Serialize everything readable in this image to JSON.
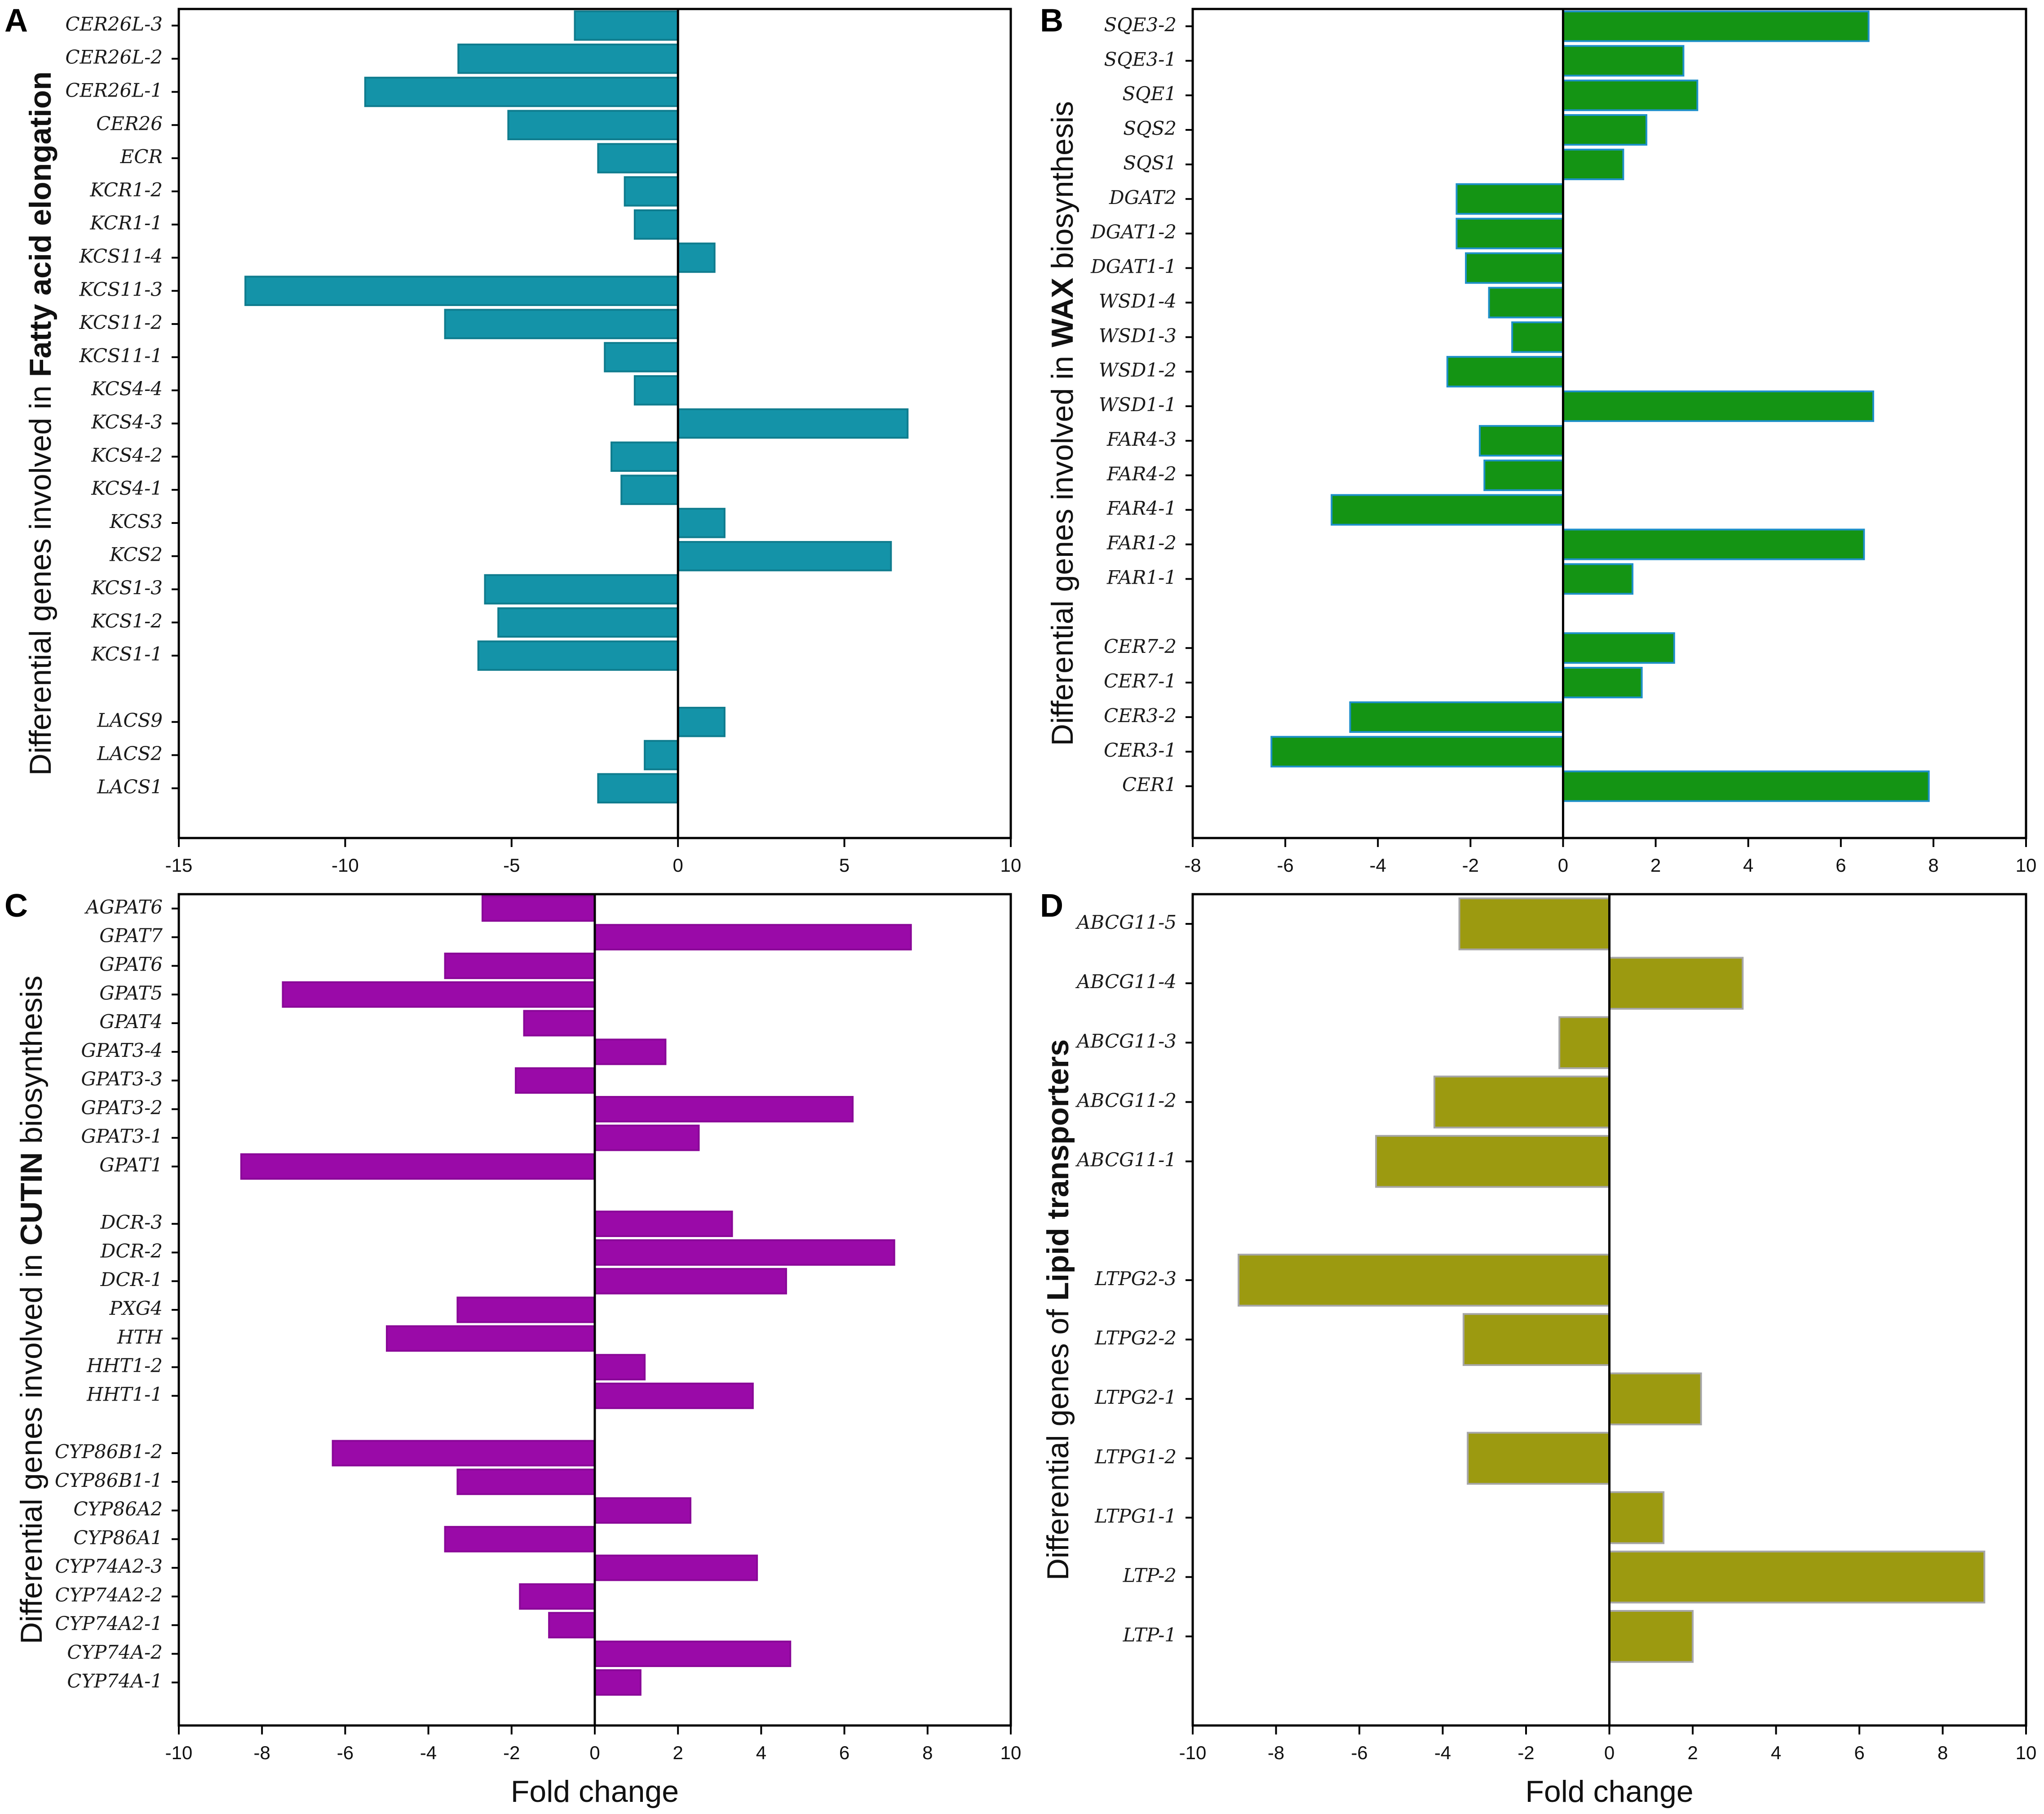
{
  "chart_data": [
    {
      "type": "bar",
      "orientation": "horizontal",
      "panel_label": "A",
      "ylabel_parts": [
        {
          "text": "Differential genes involved in ",
          "bold": false
        },
        {
          "text": "Fatty acid elongation",
          "bold": true
        }
      ],
      "xlabel": "",
      "xlim": [
        -15,
        10
      ],
      "xticks": [
        -15,
        -10,
        -5,
        0,
        5,
        10
      ],
      "color": "#1493a8",
      "edge_color": "#0f7c8e",
      "slots": 25,
      "genes": [
        {
          "name": "CER26L-3",
          "value": -3.1,
          "slot": 0
        },
        {
          "name": "CER26L-2",
          "value": -6.6,
          "slot": 1
        },
        {
          "name": "CER26L-1",
          "value": -9.4,
          "slot": 2
        },
        {
          "name": "CER26",
          "value": -5.1,
          "slot": 3
        },
        {
          "name": "ECR",
          "value": -2.4,
          "slot": 4
        },
        {
          "name": "KCR1-2",
          "value": -1.6,
          "slot": 5
        },
        {
          "name": "KCR1-1",
          "value": -1.3,
          "slot": 6
        },
        {
          "name": "KCS11-4",
          "value": 1.1,
          "slot": 7
        },
        {
          "name": "KCS11-3",
          "value": -13.0,
          "slot": 8
        },
        {
          "name": "KCS11-2",
          "value": -7.0,
          "slot": 9
        },
        {
          "name": "KCS11-1",
          "value": -2.2,
          "slot": 10
        },
        {
          "name": "KCS4-4",
          "value": -1.3,
          "slot": 11
        },
        {
          "name": "KCS4-3",
          "value": 6.9,
          "slot": 12
        },
        {
          "name": "KCS4-2",
          "value": -2.0,
          "slot": 13
        },
        {
          "name": "KCS4-1",
          "value": -1.7,
          "slot": 14
        },
        {
          "name": "KCS3",
          "value": 1.4,
          "slot": 15
        },
        {
          "name": "KCS2",
          "value": 6.4,
          "slot": 16
        },
        {
          "name": "KCS1-3",
          "value": -5.8,
          "slot": 17
        },
        {
          "name": "KCS1-2",
          "value": -5.4,
          "slot": 18
        },
        {
          "name": "KCS1-1",
          "value": -6.0,
          "slot": 19
        },
        {
          "name": "LACS9",
          "value": 1.4,
          "slot": 21
        },
        {
          "name": "LACS2",
          "value": -1.0,
          "slot": 22
        },
        {
          "name": "LACS1",
          "value": -2.4,
          "slot": 23
        }
      ]
    },
    {
      "type": "bar",
      "orientation": "horizontal",
      "panel_label": "B",
      "ylabel_parts": [
        {
          "text": "Differential genes involved in ",
          "bold": false
        },
        {
          "text": "WAX",
          "bold": true
        },
        {
          "text": " biosynthesis",
          "bold": false
        }
      ],
      "xlabel": "",
      "xlim": [
        -8,
        10
      ],
      "xticks": [
        -8,
        -6,
        -4,
        -2,
        0,
        2,
        4,
        6,
        8,
        10
      ],
      "color": "#149414",
      "edge_color": "#1e90c8",
      "slots": 24,
      "genes": [
        {
          "name": "SQE3-2",
          "value": 6.6,
          "slot": 0
        },
        {
          "name": "SQE3-1",
          "value": 2.6,
          "slot": 1
        },
        {
          "name": "SQE1",
          "value": 2.9,
          "slot": 2
        },
        {
          "name": "SQS2",
          "value": 1.8,
          "slot": 3
        },
        {
          "name": "SQS1",
          "value": 1.3,
          "slot": 4
        },
        {
          "name": "DGAT2",
          "value": -2.3,
          "slot": 5
        },
        {
          "name": "DGAT1-2",
          "value": -2.3,
          "slot": 6
        },
        {
          "name": "DGAT1-1",
          "value": -2.1,
          "slot": 7
        },
        {
          "name": "WSD1-4",
          "value": -1.6,
          "slot": 8
        },
        {
          "name": "WSD1-3",
          "value": -1.1,
          "slot": 9
        },
        {
          "name": "WSD1-2",
          "value": -2.5,
          "slot": 10
        },
        {
          "name": "WSD1-1",
          "value": 6.7,
          "slot": 11
        },
        {
          "name": "FAR4-3",
          "value": -1.8,
          "slot": 12
        },
        {
          "name": "FAR4-2",
          "value": -1.7,
          "slot": 13
        },
        {
          "name": "FAR4-1",
          "value": -5.0,
          "slot": 14
        },
        {
          "name": "FAR1-2",
          "value": 6.5,
          "slot": 15
        },
        {
          "name": "FAR1-1",
          "value": 1.5,
          "slot": 16
        },
        {
          "name": "CER7-2",
          "value": 2.4,
          "slot": 18
        },
        {
          "name": "CER7-1",
          "value": 1.7,
          "slot": 19
        },
        {
          "name": "CER3-2",
          "value": -4.6,
          "slot": 20
        },
        {
          "name": "CER3-1",
          "value": -6.3,
          "slot": 21
        },
        {
          "name": "CER1",
          "value": 7.9,
          "slot": 22
        }
      ]
    },
    {
      "type": "bar",
      "orientation": "horizontal",
      "panel_label": "C",
      "ylabel_parts": [
        {
          "text": "Differential genes involved in ",
          "bold": false
        },
        {
          "text": "CUTIN",
          "bold": true
        },
        {
          "text": " biosynthesis",
          "bold": false
        }
      ],
      "xlabel": "Fold change",
      "xlim": [
        -10,
        10
      ],
      "xticks": [
        -10,
        -8,
        -6,
        -4,
        -2,
        0,
        2,
        4,
        6,
        8,
        10
      ],
      "color": "#9a0aa8",
      "edge_color": "#8a0898",
      "slots": 29,
      "genes": [
        {
          "name": "AGPAT6",
          "value": -2.7,
          "slot": 0
        },
        {
          "name": "GPAT7",
          "value": 7.6,
          "slot": 1
        },
        {
          "name": "GPAT6",
          "value": -3.6,
          "slot": 2
        },
        {
          "name": "GPAT5",
          "value": -7.5,
          "slot": 3
        },
        {
          "name": "GPAT4",
          "value": -1.7,
          "slot": 4
        },
        {
          "name": "GPAT3-4",
          "value": 1.7,
          "slot": 5
        },
        {
          "name": "GPAT3-3",
          "value": -1.9,
          "slot": 6
        },
        {
          "name": "GPAT3-2",
          "value": 6.2,
          "slot": 7
        },
        {
          "name": "GPAT3-1",
          "value": 2.5,
          "slot": 8
        },
        {
          "name": "GPAT1",
          "value": -8.5,
          "slot": 9
        },
        {
          "name": "DCR-3",
          "value": 3.3,
          "slot": 11
        },
        {
          "name": "DCR-2",
          "value": 7.2,
          "slot": 12
        },
        {
          "name": "DCR-1",
          "value": 4.6,
          "slot": 13
        },
        {
          "name": "PXG4",
          "value": -3.3,
          "slot": 14
        },
        {
          "name": "HTH",
          "value": -5.0,
          "slot": 15
        },
        {
          "name": "HHT1-2",
          "value": 1.2,
          "slot": 16
        },
        {
          "name": "HHT1-1",
          "value": 3.8,
          "slot": 17
        },
        {
          "name": "CYP86B1-2",
          "value": -6.3,
          "slot": 19
        },
        {
          "name": "CYP86B1-1",
          "value": -3.3,
          "slot": 20
        },
        {
          "name": "CYP86A2",
          "value": 2.3,
          "slot": 21
        },
        {
          "name": "CYP86A1",
          "value": -3.6,
          "slot": 22
        },
        {
          "name": "CYP74A2-3",
          "value": 3.9,
          "slot": 23
        },
        {
          "name": "CYP74A2-2",
          "value": -1.8,
          "slot": 24
        },
        {
          "name": "CYP74A2-1",
          "value": -1.1,
          "slot": 25
        },
        {
          "name": "CYP74A-2",
          "value": 4.7,
          "slot": 26
        },
        {
          "name": "CYP74A-1",
          "value": 1.1,
          "slot": 27
        }
      ]
    },
    {
      "type": "bar",
      "orientation": "horizontal",
      "panel_label": "D",
      "ylabel_parts": [
        {
          "text": "Differential genes of ",
          "bold": false
        },
        {
          "text": "Lipid transporters",
          "bold": true
        }
      ],
      "xlabel": "Fold change",
      "xlim": [
        -10,
        10
      ],
      "xticks": [
        -10,
        -8,
        -6,
        -4,
        -2,
        0,
        2,
        4,
        6,
        8,
        10
      ],
      "color": "#9c9a10",
      "edge_color": "#a6a6a6",
      "slots": 14,
      "genes": [
        {
          "name": "ABCG11-5",
          "value": -3.6,
          "slot": 0
        },
        {
          "name": "ABCG11-4",
          "value": 3.2,
          "slot": 1
        },
        {
          "name": "ABCG11-3",
          "value": -1.2,
          "slot": 2
        },
        {
          "name": "ABCG11-2",
          "value": -4.2,
          "slot": 3
        },
        {
          "name": "ABCG11-1",
          "value": -5.6,
          "slot": 4
        },
        {
          "name": "LTPG2-3",
          "value": -8.9,
          "slot": 6
        },
        {
          "name": "LTPG2-2",
          "value": -3.5,
          "slot": 7
        },
        {
          "name": "LTPG2-1",
          "value": 2.2,
          "slot": 8
        },
        {
          "name": "LTPG1-2",
          "value": -3.4,
          "slot": 9
        },
        {
          "name": "LTPG1-1",
          "value": 1.3,
          "slot": 10
        },
        {
          "name": "LTP-2",
          "value": 9.0,
          "slot": 11
        },
        {
          "name": "LTP-1",
          "value": 2.0,
          "slot": 12
        }
      ]
    }
  ]
}
